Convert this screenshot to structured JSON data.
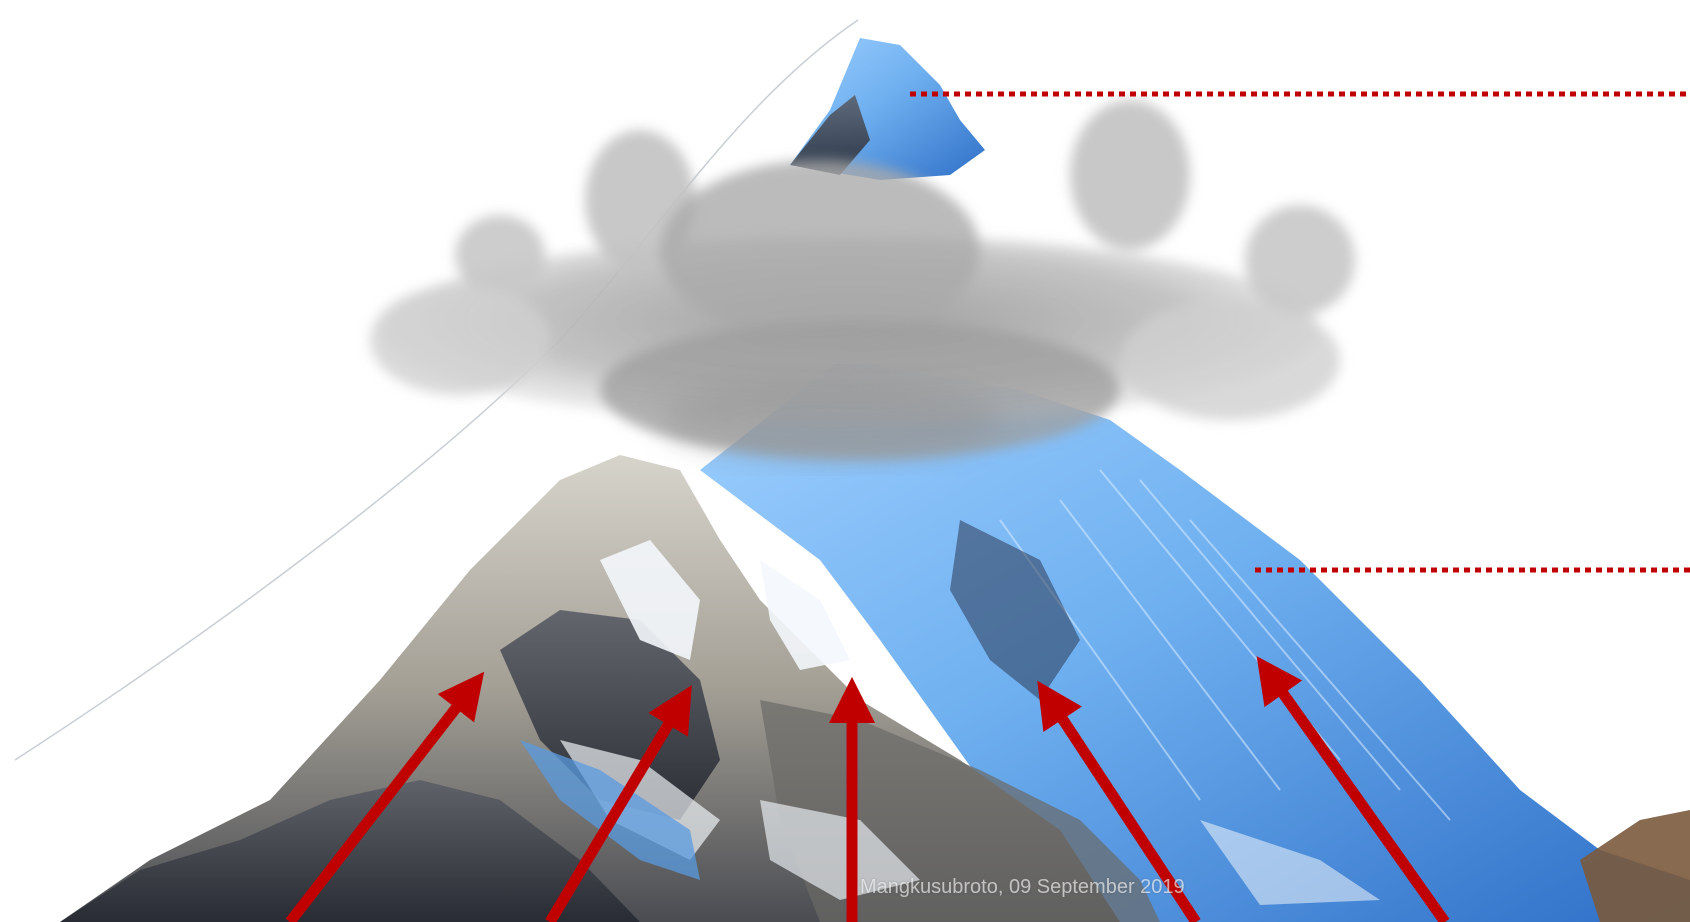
{
  "caption": "Mangkusubroto, 09 September 2019",
  "colors": {
    "arrow": "#c00000",
    "dotted_line": "#c00000",
    "ice_blue": "#6fb0f0",
    "deep_blue": "#2f6fc7",
    "rock_dark": "#3c3f48",
    "rock_light": "#b9b6ad",
    "snow": "#f4f8fc",
    "cloud": "#b8b8b8"
  },
  "icons": [
    "mountain-peak-icon",
    "cloud-icon",
    "red-arrow-icon",
    "dotted-leader-line"
  ]
}
